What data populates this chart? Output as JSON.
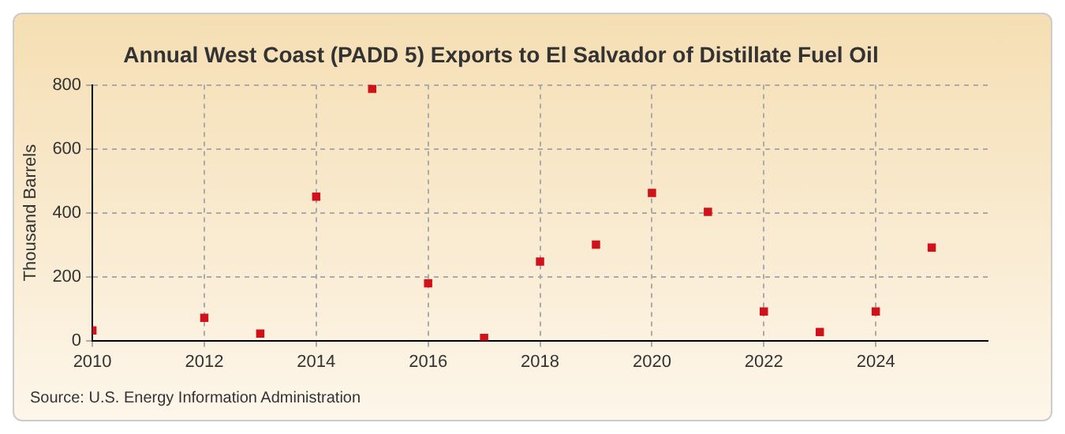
{
  "chart_data": {
    "type": "scatter",
    "title": "Annual West Coast (PADD 5) Exports to El Salvador of Distillate Fuel Oil",
    "ylabel": "Thousand Barrels",
    "x": [
      2010,
      2012,
      2013,
      2014,
      2015,
      2016,
      2017,
      2018,
      2019,
      2020,
      2021,
      2022,
      2023,
      2024,
      2025
    ],
    "series": [
      {
        "color": "#d0121b",
        "values": [
          32,
          71,
          22,
          450,
          788,
          179,
          8,
          247,
          300,
          462,
          403,
          91,
          27,
          91,
          291
        ]
      }
    ],
    "xlim": [
      2010,
      2026
    ],
    "xticks": [
      2010,
      2012,
      2014,
      2016,
      2018,
      2020,
      2022,
      2024
    ],
    "ylim": [
      0,
      800
    ],
    "yticks": [
      0,
      200,
      400,
      600,
      800
    ],
    "grid": true,
    "marker": "square",
    "legend": false,
    "annotations": [
      "Source: U.S. Energy Information Administration"
    ]
  }
}
